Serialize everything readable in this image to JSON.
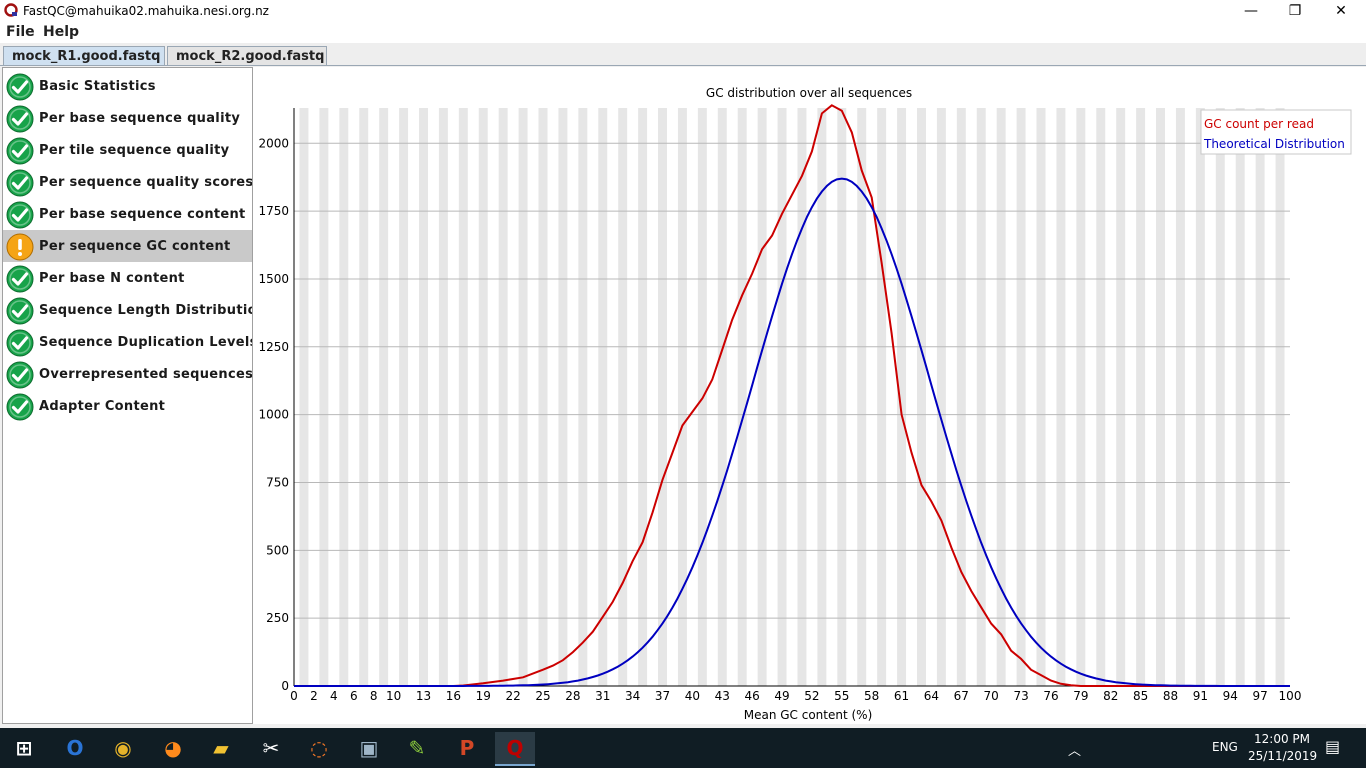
{
  "window": {
    "title": "FastQC@mahuika02.mahuika.nesi.org.nz",
    "minimize": "—",
    "restore": "❐",
    "close": "✕"
  },
  "menu": [
    "File",
    "Help"
  ],
  "tabs": [
    {
      "label": "mock_R1.good.fastq",
      "active": true
    },
    {
      "label": "mock_R2.good.fastq",
      "active": false
    }
  ],
  "modules": [
    {
      "label": "Basic Statistics",
      "status": "pass"
    },
    {
      "label": "Per base sequence quality",
      "status": "pass"
    },
    {
      "label": "Per tile sequence quality",
      "status": "pass"
    },
    {
      "label": "Per sequence quality scores",
      "status": "pass"
    },
    {
      "label": "Per base sequence content",
      "status": "pass"
    },
    {
      "label": "Per sequence GC content",
      "status": "warn",
      "selected": true
    },
    {
      "label": "Per base N content",
      "status": "pass"
    },
    {
      "label": "Sequence Length Distribution",
      "status": "pass"
    },
    {
      "label": "Sequence Duplication Levels",
      "status": "pass"
    },
    {
      "label": "Overrepresented sequences",
      "status": "pass"
    },
    {
      "label": "Adapter Content",
      "status": "pass"
    }
  ],
  "colors": {
    "pass": "#17a34a",
    "warn": "#f5a416",
    "gc_series": "#cc0000",
    "theoretical_series": "#0000c0",
    "band": "#e6e6e6",
    "grid": "#b8b8b8"
  },
  "chart_data": {
    "type": "line",
    "title": "GC distribution over all sequences",
    "xlabel": "Mean GC content (%)",
    "ylabel": "",
    "xlim": [
      0,
      100
    ],
    "ylim": [
      0,
      2130
    ],
    "yticks": [
      0,
      250,
      500,
      750,
      1000,
      1250,
      1500,
      1750,
      2000
    ],
    "xticks": [
      0,
      2,
      4,
      6,
      8,
      10,
      13,
      16,
      19,
      22,
      25,
      28,
      31,
      34,
      37,
      40,
      43,
      46,
      49,
      52,
      55,
      58,
      61,
      64,
      67,
      70,
      73,
      76,
      79,
      82,
      85,
      88,
      91,
      94,
      97,
      100
    ],
    "grid": true,
    "legend_position": "top-right",
    "series": [
      {
        "name": "GC count per read",
        "color": "#cc0000",
        "points": [
          [
            0,
            0
          ],
          [
            16,
            0
          ],
          [
            17,
            2
          ],
          [
            19,
            10
          ],
          [
            21,
            20
          ],
          [
            23,
            32
          ],
          [
            25,
            60
          ],
          [
            26,
            75
          ],
          [
            27,
            95
          ],
          [
            28,
            125
          ],
          [
            29,
            160
          ],
          [
            30,
            200
          ],
          [
            31,
            255
          ],
          [
            32,
            310
          ],
          [
            33,
            380
          ],
          [
            34,
            460
          ],
          [
            35,
            530
          ],
          [
            36,
            640
          ],
          [
            37,
            760
          ],
          [
            38,
            860
          ],
          [
            39,
            960
          ],
          [
            40,
            1010
          ],
          [
            41,
            1060
          ],
          [
            42,
            1130
          ],
          [
            43,
            1240
          ],
          [
            44,
            1350
          ],
          [
            45,
            1440
          ],
          [
            46,
            1520
          ],
          [
            47,
            1610
          ],
          [
            48,
            1660
          ],
          [
            49,
            1740
          ],
          [
            50,
            1810
          ],
          [
            51,
            1880
          ],
          [
            52,
            1970
          ],
          [
            53,
            2110
          ],
          [
            54,
            2140
          ],
          [
            55,
            2120
          ],
          [
            56,
            2040
          ],
          [
            57,
            1900
          ],
          [
            58,
            1800
          ],
          [
            59,
            1560
          ],
          [
            60,
            1300
          ],
          [
            61,
            1000
          ],
          [
            62,
            860
          ],
          [
            63,
            740
          ],
          [
            64,
            680
          ],
          [
            65,
            610
          ],
          [
            66,
            510
          ],
          [
            67,
            420
          ],
          [
            68,
            350
          ],
          [
            69,
            290
          ],
          [
            70,
            230
          ],
          [
            71,
            190
          ],
          [
            72,
            130
          ],
          [
            73,
            100
          ],
          [
            74,
            60
          ],
          [
            75,
            40
          ],
          [
            76,
            20
          ],
          [
            77,
            8
          ],
          [
            78,
            3
          ],
          [
            79,
            0
          ],
          [
            100,
            0
          ]
        ]
      },
      {
        "name": "Theoretical Distribution",
        "color": "#0000c0",
        "gaussian": {
          "mean": 55,
          "sd": 8.8,
          "peak": 1870
        }
      }
    ]
  },
  "taskbar": {
    "apps": [
      "windows-start-icon",
      "outlook-icon",
      "chrome-icon",
      "firefox-icon",
      "file-explorer-icon",
      "snipping-icon",
      "jupyter-icon",
      "terminal-icon",
      "notepad-icon",
      "powerpoint-icon",
      "fastqc-icon"
    ],
    "language": "ENG",
    "time": "12:00 PM",
    "date": "25/11/2019"
  }
}
